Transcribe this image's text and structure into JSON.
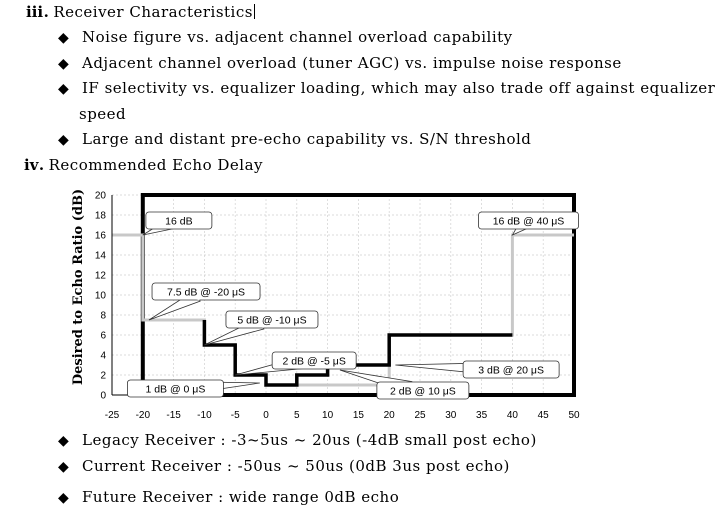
{
  "section3": {
    "numeral": "ⅲ.",
    "heading": "Receiver Characteristics",
    "bullets": [
      "Noise figure vs. adjacent channel overload capability",
      "Adjacent channel overload (tuner AGC) vs. impulse noise response",
      "IF selectivity vs. equalizer loading, which may also trade off against equalizer",
      "Large and distant pre-echo capability vs. S/N threshold"
    ],
    "bullet3_continuation": "speed"
  },
  "section4": {
    "numeral": "ⅳ.",
    "heading": "Recommended Echo Delay"
  },
  "chart_data": {
    "type": "line",
    "xlabel": "",
    "ylabel": "Desired to Echo Ratio (dB)",
    "xlim": [
      -25,
      50
    ],
    "ylim": [
      0,
      20
    ],
    "xticks": [
      -25,
      -20,
      -15,
      -10,
      -5,
      0,
      5,
      10,
      15,
      20,
      25,
      30,
      35,
      40,
      45,
      50
    ],
    "yticks": [
      0,
      2,
      4,
      6,
      8,
      10,
      12,
      14,
      16,
      18,
      20
    ],
    "grid": true,
    "series": [
      {
        "color": "#c8c8c8",
        "style": "step",
        "points": [
          [
            -25,
            16
          ],
          [
            -20,
            16
          ],
          [
            -20,
            7.5
          ],
          [
            -10,
            7.5
          ],
          [
            -10,
            5
          ],
          [
            -5,
            5
          ],
          [
            -5,
            2
          ],
          [
            0,
            2
          ],
          [
            0,
            1
          ],
          [
            20,
            1
          ],
          [
            20,
            6
          ],
          [
            40,
            6
          ],
          [
            40,
            16
          ],
          [
            50,
            16
          ]
        ]
      },
      {
        "color": "#000000",
        "style": "step",
        "points": [
          [
            -10,
            7.5
          ],
          [
            -10,
            5
          ],
          [
            -5,
            5
          ],
          [
            -5,
            2
          ],
          [
            0,
            2
          ],
          [
            0,
            1
          ],
          [
            5,
            1
          ],
          [
            5,
            2
          ],
          [
            10,
            2
          ],
          [
            10,
            3
          ],
          [
            20,
            3
          ],
          [
            20,
            6
          ],
          [
            40,
            6
          ]
        ]
      }
    ],
    "frame": [
      [
        -20,
        20
      ],
      [
        50,
        0
      ]
    ],
    "annotations": [
      {
        "text": "16 dB",
        "x": -19.5,
        "y": 18.3,
        "tx": -20,
        "ty": 16,
        "w": 66
      },
      {
        "text": "16 dB @ 40 μS",
        "x": 34.5,
        "y": 18.3,
        "tx": 40,
        "ty": 16,
        "w": 100
      },
      {
        "text": "7.5 dB @ -20 μS",
        "x": -18.5,
        "y": 11.2,
        "tx": -19,
        "ty": 7.5,
        "w": 108
      },
      {
        "text": "5 dB @ -10 μS",
        "x": -6.5,
        "y": 8.4,
        "tx": -10,
        "ty": 5,
        "w": 92
      },
      {
        "text": "2 dB @ -5 μS",
        "x": 1,
        "y": 4.3,
        "tx": -5,
        "ty": 2,
        "w": 84
      },
      {
        "text": "1 dB @ 0 μS",
        "x": -22.5,
        "y": 1.5,
        "tx": -1,
        "ty": 1.2,
        "w": 96
      },
      {
        "text": "2 dB @ 10 μS",
        "x": 18,
        "y": 1.3,
        "tx": 12,
        "ty": 2.5,
        "w": 92
      },
      {
        "text": "3 dB @ 20 μS",
        "x": 32,
        "y": 3.4,
        "tx": 21,
        "ty": 3,
        "w": 96
      }
    ]
  },
  "receivers": [
    "Legacy Receiver : -3~5us ~ 20us (-4dB small post echo)",
    "Current Receiver : -50us ~ 50us (0dB 3us post echo)",
    "Future Receiver : wide range 0dB echo"
  ]
}
